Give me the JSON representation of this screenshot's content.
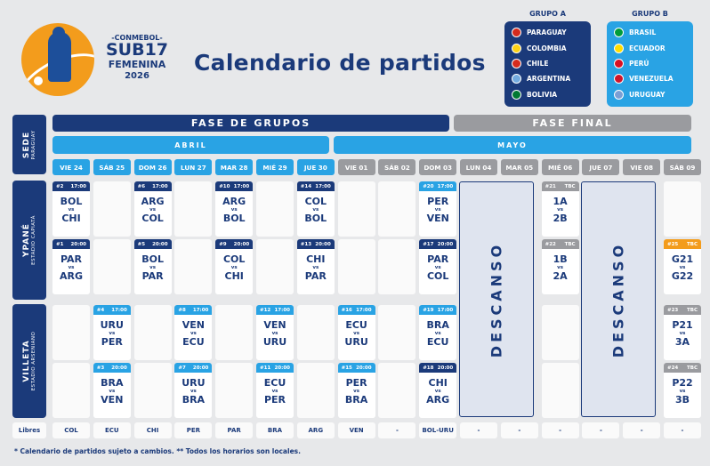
{
  "logo": {
    "org": "-CONMEBOL-",
    "name": "SUB17",
    "sub": "FEMENINA",
    "year": "2026"
  },
  "title": "Calendario de partidos",
  "groups": [
    {
      "title": "GRUPO A",
      "color": "#1b3a7a",
      "teams": [
        {
          "name": "PARAGUAY",
          "flag": "#d52b1e"
        },
        {
          "name": "COLOMBIA",
          "flag": "#fcd116"
        },
        {
          "name": "CHILE",
          "flag": "#d52b1e"
        },
        {
          "name": "ARGENTINA",
          "flag": "#74acdf"
        },
        {
          "name": "BOLIVIA",
          "flag": "#007934"
        }
      ]
    },
    {
      "title": "GRUPO B",
      "color": "#29a3e4",
      "teams": [
        {
          "name": "BRASIL",
          "flag": "#009c3b"
        },
        {
          "name": "ECUADOR",
          "flag": "#ffdd00"
        },
        {
          "name": "PERÚ",
          "flag": "#d91023"
        },
        {
          "name": "VENEZUELA",
          "flag": "#cf142b"
        },
        {
          "name": "URUGUAY",
          "flag": "#7b9fd4"
        }
      ]
    }
  ],
  "phases": {
    "groups": "FASE DE GRUPOS",
    "final": "FASE FINAL"
  },
  "months": {
    "april": "ABRIL",
    "may": "MAYO"
  },
  "sede": {
    "title": "SEDE",
    "sub": "PARAGUAY"
  },
  "venues": [
    {
      "name": "YPANÉ",
      "stadium": "ESTADIO CAPIATÁ"
    },
    {
      "name": "VILLETA",
      "stadium": "ESTADIO ARSENIANO"
    }
  ],
  "days": [
    "VIE 24",
    "SÁB 25",
    "DOM 26",
    "LUN 27",
    "MAR 28",
    "MIÉ 29",
    "JUE 30",
    "VIE 01",
    "SÁB 02",
    "DOM 03",
    "LUN 04",
    "MAR 05",
    "MIÉ 06",
    "JUE 07",
    "VIE 08",
    "SÁB 09"
  ],
  "matches": [
    {
      "col": 0,
      "row": 0,
      "num": "#2",
      "time": "17:00",
      "home": "BOL",
      "away": "CHI",
      "vs": "vs",
      "style": "navy"
    },
    {
      "col": 0,
      "row": 1,
      "num": "#1",
      "time": "20:00",
      "home": "PAR",
      "away": "ARG",
      "vs": "vs",
      "style": "navy"
    },
    {
      "col": 2,
      "row": 0,
      "num": "#6",
      "time": "17:00",
      "home": "ARG",
      "away": "COL",
      "vs": "vs",
      "style": "navy"
    },
    {
      "col": 2,
      "row": 1,
      "num": "#5",
      "time": "20:00",
      "home": "BOL",
      "away": "PAR",
      "vs": "vs",
      "style": "navy"
    },
    {
      "col": 4,
      "row": 0,
      "num": "#10",
      "time": "17:00",
      "home": "ARG",
      "away": "BOL",
      "vs": "vs",
      "style": "navy"
    },
    {
      "col": 4,
      "row": 1,
      "num": "#9",
      "time": "20:00",
      "home": "COL",
      "away": "CHI",
      "vs": "vs",
      "style": "navy"
    },
    {
      "col": 6,
      "row": 0,
      "num": "#14",
      "time": "17:00",
      "home": "COL",
      "away": "BOL",
      "vs": "vs",
      "style": "navy"
    },
    {
      "col": 6,
      "row": 1,
      "num": "#13",
      "time": "20:00",
      "home": "CHI",
      "away": "PAR",
      "vs": "vs",
      "style": "navy"
    },
    {
      "col": 9,
      "row": 0,
      "num": "#20",
      "time": "17:00",
      "home": "PER",
      "away": "VEN",
      "vs": "vs",
      "style": "sky"
    },
    {
      "col": 9,
      "row": 1,
      "num": "#17",
      "time": "20:00",
      "home": "PAR",
      "away": "COL",
      "vs": "vs",
      "style": "navy"
    },
    {
      "col": 12,
      "row": 0,
      "num": "#21",
      "time": "TBC",
      "home": "1A",
      "away": "2B",
      "vs": "vs",
      "style": "gray"
    },
    {
      "col": 12,
      "row": 1,
      "num": "#22",
      "time": "TBC",
      "home": "1B",
      "away": "2A",
      "vs": "vs",
      "style": "gray"
    },
    {
      "col": 15,
      "row": 1,
      "num": "#25",
      "time": "TBC",
      "home": "G21",
      "away": "G22",
      "vs": "vs",
      "style": "orange"
    },
    {
      "col": 1,
      "row": 2,
      "num": "#4",
      "time": "17:00",
      "home": "URU",
      "away": "PER",
      "vs": "vs",
      "style": "sky"
    },
    {
      "col": 1,
      "row": 3,
      "num": "#3",
      "time": "20:00",
      "home": "BRA",
      "away": "VEN",
      "vs": "vs",
      "style": "sky"
    },
    {
      "col": 3,
      "row": 2,
      "num": "#8",
      "time": "17:00",
      "home": "VEN",
      "away": "ECU",
      "vs": "vs",
      "style": "sky"
    },
    {
      "col": 3,
      "row": 3,
      "num": "#7",
      "time": "20:00",
      "home": "URU",
      "away": "BRA",
      "vs": "vs",
      "style": "sky"
    },
    {
      "col": 5,
      "row": 2,
      "num": "#12",
      "time": "17:00",
      "home": "VEN",
      "away": "URU",
      "vs": "vs",
      "style": "sky"
    },
    {
      "col": 5,
      "row": 3,
      "num": "#11",
      "time": "20:00",
      "home": "ECU",
      "away": "PER",
      "vs": "vs",
      "style": "sky"
    },
    {
      "col": 7,
      "row": 2,
      "num": "#16",
      "time": "17:00",
      "home": "ECU",
      "away": "URU",
      "vs": "vs",
      "style": "sky"
    },
    {
      "col": 7,
      "row": 3,
      "num": "#15",
      "time": "20:00",
      "home": "PER",
      "away": "BRA",
      "vs": "vs",
      "style": "sky"
    },
    {
      "col": 9,
      "row": 2,
      "num": "#19",
      "time": "17:00",
      "home": "BRA",
      "away": "ECU",
      "vs": "vs",
      "style": "sky"
    },
    {
      "col": 9,
      "row": 3,
      "num": "#18",
      "time": "20:00",
      "home": "CHI",
      "away": "ARG",
      "vs": "vs",
      "style": "navy"
    },
    {
      "col": 15,
      "row": 2,
      "num": "#23",
      "time": "TBC",
      "home": "P21",
      "away": "3A",
      "vs": "vs",
      "style": "gray"
    },
    {
      "col": 15,
      "row": 3,
      "num": "#24",
      "time": "TBC",
      "home": "P22",
      "away": "3B",
      "vs": "vs",
      "style": "gray"
    }
  ],
  "rest": "DESCANSO",
  "rest_cols": [
    10,
    13
  ],
  "libres_label": "Libres",
  "libres": [
    "COL",
    "ECU",
    "CHI",
    "PER",
    "PAR",
    "BRA",
    "ARG",
    "VEN",
    "-",
    "BOL-URU",
    "-",
    "-",
    "-",
    "-",
    "-",
    "-"
  ],
  "footnote": "* Calendario de partidos sujeto a cambios. ** Todos los horarios son locales."
}
